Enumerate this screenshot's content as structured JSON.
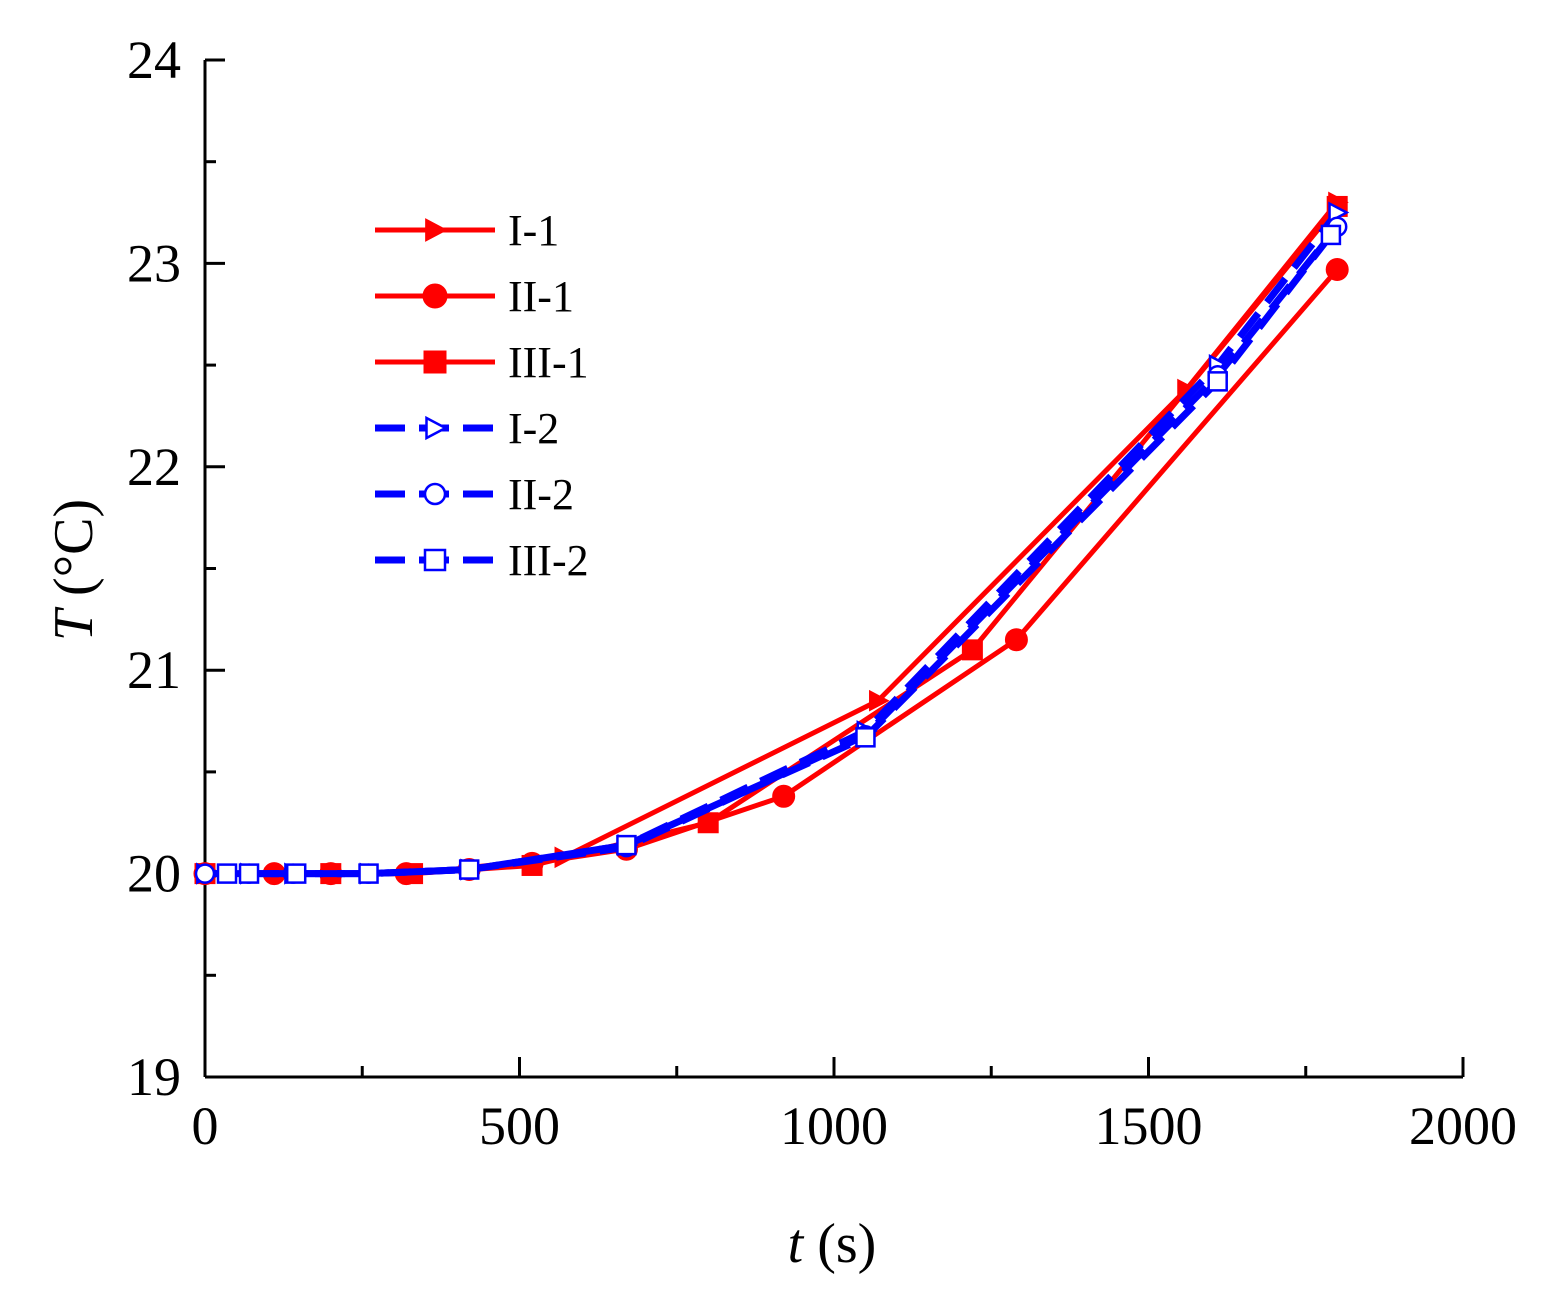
{
  "chart_data": {
    "type": "line",
    "title": "",
    "xlabel": {
      "var": "t",
      "unit": " (s)"
    },
    "ylabel": {
      "var": "T",
      "unit": " (°C)"
    },
    "xlim": [
      0,
      2000
    ],
    "ylim": [
      19,
      24
    ],
    "xticks": [
      0,
      500,
      1000,
      1500,
      2000
    ],
    "xtick_labels": [
      "0",
      "500",
      "1000",
      "1500",
      "2000"
    ],
    "yticks": [
      19,
      20,
      21,
      22,
      23,
      24
    ],
    "ytick_labels": [
      "19",
      "20",
      "21",
      "22",
      "23",
      "24"
    ],
    "grid": false,
    "legend_position": "top-left",
    "series": [
      {
        "name": "I-1",
        "color": "#ff0000",
        "dash": "solid",
        "marker": "triangle-right",
        "filled": true,
        "x": [
          0,
          120,
          330,
          570,
          1070,
          1560,
          1800
        ],
        "y": [
          20.0,
          20.0,
          20.0,
          20.08,
          20.85,
          22.38,
          23.3
        ]
      },
      {
        "name": "II-1",
        "color": "#ff0000",
        "dash": "solid",
        "marker": "circle",
        "filled": true,
        "x": [
          0,
          110,
          200,
          320,
          420,
          520,
          670,
          920,
          1290,
          1800
        ],
        "y": [
          20.0,
          20.0,
          20.0,
          20.0,
          20.02,
          20.05,
          20.12,
          20.38,
          21.15,
          22.97
        ]
      },
      {
        "name": "III-1",
        "color": "#ff0000",
        "dash": "solid",
        "marker": "square",
        "filled": true,
        "x": [
          0,
          200,
          330,
          520,
          800,
          1220,
          1800
        ],
        "y": [
          20.0,
          20.0,
          20.0,
          20.04,
          20.25,
          21.1,
          23.28
        ]
      },
      {
        "name": "I-2",
        "color": "#0000ff",
        "dash": "dashed",
        "marker": "triangle-right",
        "filled": false,
        "x": [
          0,
          70,
          140,
          260,
          420,
          670,
          1050,
          1610,
          1800
        ],
        "y": [
          20.0,
          20.0,
          20.0,
          20.0,
          20.02,
          20.14,
          20.7,
          22.5,
          23.25
        ]
      },
      {
        "name": "II-2",
        "color": "#0000ff",
        "dash": "dashed",
        "marker": "circle",
        "filled": false,
        "x": [
          0,
          70,
          140,
          260,
          420,
          670,
          1050,
          1610,
          1800
        ],
        "y": [
          20.0,
          20.0,
          20.0,
          20.0,
          20.02,
          20.13,
          20.68,
          22.45,
          23.18
        ]
      },
      {
        "name": "III-2",
        "color": "#0000ff",
        "dash": "dashed",
        "marker": "square",
        "filled": false,
        "x": [
          35,
          70,
          145,
          260,
          420,
          670,
          1050,
          1610,
          1790
        ],
        "y": [
          20.0,
          20.0,
          20.0,
          20.0,
          20.02,
          20.14,
          20.67,
          22.42,
          23.14
        ]
      }
    ]
  }
}
